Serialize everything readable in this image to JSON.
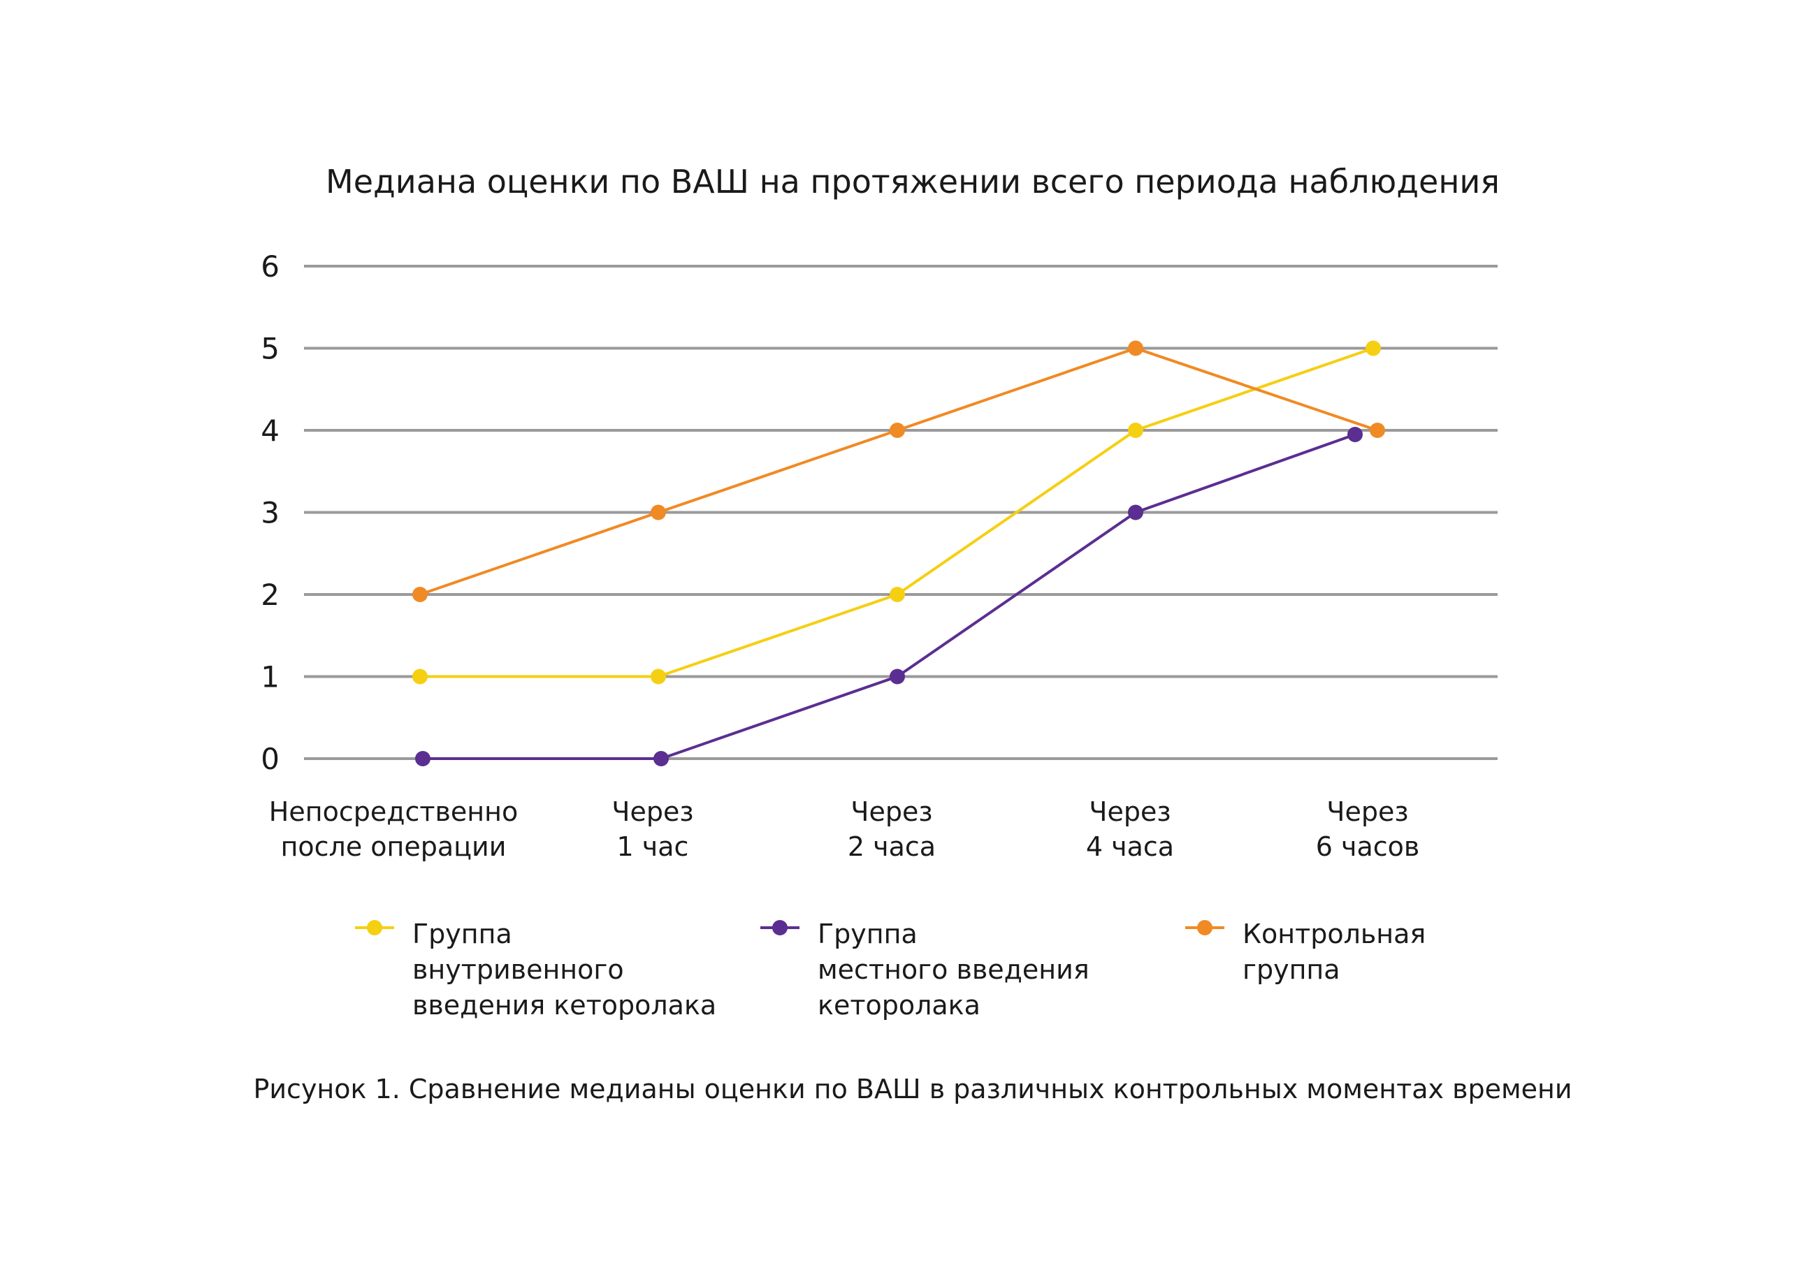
{
  "chart_data": {
    "type": "line",
    "title": "Медиана оценки по ВАШ на протяжении всего периода наблюдения",
    "caption": "Рисунок 1. Сравнение медианы оценки по ВАШ в различных контрольных моментах времени",
    "categories": [
      [
        "Непосредственно",
        "после операции"
      ],
      [
        "Через",
        "1 час"
      ],
      [
        "Через",
        "2 часа"
      ],
      [
        "Через",
        "4 часа"
      ],
      [
        "Через",
        "6 часов"
      ]
    ],
    "ylim": [
      0,
      6
    ],
    "yticks": [
      "0",
      "1",
      "2",
      "3",
      "4",
      "5",
      "6"
    ],
    "grid": true,
    "legend_position": "bottom",
    "series": [
      {
        "name": [
          "Группа",
          "внутривенного",
          "введения кеторолака"
        ],
        "color": "#F5CF12",
        "values": [
          1,
          1,
          2,
          4,
          5
        ]
      },
      {
        "name": [
          "Группа",
          "местного введения",
          "кеторолака"
        ],
        "color": "#5B2E91",
        "values": [
          0,
          0,
          1,
          3,
          4
        ]
      },
      {
        "name": [
          "Контрольная",
          "группа"
        ],
        "color": "#F08A24",
        "values": [
          2,
          3,
          4,
          5,
          4
        ]
      }
    ]
  }
}
